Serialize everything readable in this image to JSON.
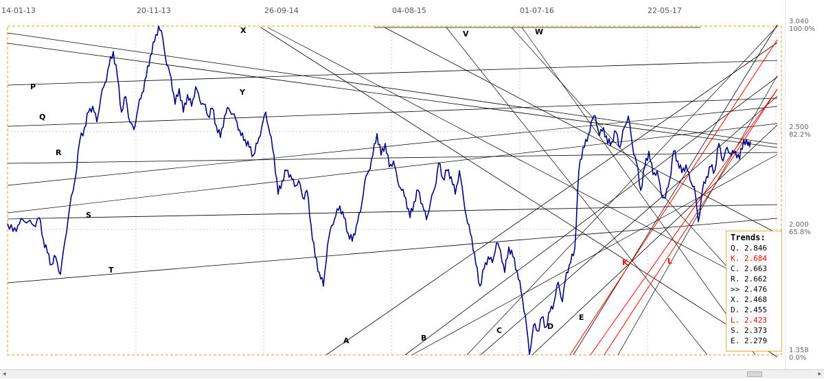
{
  "chart_data": {
    "type": "line",
    "x_dates": [
      "14-01-13",
      "20-11-13",
      "26-09-14",
      "04-08-15",
      "01-07-16",
      "22-05-17"
    ],
    "y_levels": [
      {
        "value": "3.040",
        "pct": "100.0%"
      },
      {
        "value": "2.500",
        "pct": "82.2%"
      },
      {
        "value": "2.000",
        "pct": "65.8%"
      },
      {
        "value": "1.358",
        "pct": "0.0%"
      }
    ],
    "ylim": [
      1.358,
      3.04
    ],
    "grid": "vertical dotted at date labels, horizontal dotted at y levels",
    "series": [
      {
        "color": "#000080",
        "points": [
          [
            0,
            2.03
          ],
          [
            8,
            1.99
          ],
          [
            15,
            2.02
          ],
          [
            22,
            2.05
          ],
          [
            30,
            2.04
          ],
          [
            38,
            2.02
          ],
          [
            46,
            2.06
          ],
          [
            52,
            1.95
          ],
          [
            58,
            1.88
          ],
          [
            64,
            1.82
          ],
          [
            70,
            1.86
          ],
          [
            77,
            1.77
          ],
          [
            84,
            1.95
          ],
          [
            90,
            2.1
          ],
          [
            98,
            2.25
          ],
          [
            105,
            2.45
          ],
          [
            112,
            2.52
          ],
          [
            118,
            2.6
          ],
          [
            124,
            2.63
          ],
          [
            130,
            2.55
          ],
          [
            136,
            2.68
          ],
          [
            142,
            2.75
          ],
          [
            148,
            2.84
          ],
          [
            154,
            2.91
          ],
          [
            160,
            2.78
          ],
          [
            166,
            2.6
          ],
          [
            172,
            2.68
          ],
          [
            178,
            2.55
          ],
          [
            184,
            2.51
          ],
          [
            190,
            2.62
          ],
          [
            196,
            2.7
          ],
          [
            202,
            2.78
          ],
          [
            208,
            2.89
          ],
          [
            214,
            2.96
          ],
          [
            220,
            3.04
          ],
          [
            226,
            2.98
          ],
          [
            232,
            2.84
          ],
          [
            238,
            2.78
          ],
          [
            244,
            2.64
          ],
          [
            250,
            2.72
          ],
          [
            256,
            2.6
          ],
          [
            262,
            2.69
          ],
          [
            268,
            2.63
          ],
          [
            274,
            2.73
          ],
          [
            280,
            2.66
          ],
          [
            286,
            2.64
          ],
          [
            292,
            2.58
          ],
          [
            298,
            2.62
          ],
          [
            304,
            2.53
          ],
          [
            310,
            2.47
          ],
          [
            316,
            2.58
          ],
          [
            322,
            2.62
          ],
          [
            328,
            2.59
          ],
          [
            334,
            2.55
          ],
          [
            340,
            2.48
          ],
          [
            346,
            2.46
          ],
          [
            352,
            2.42
          ],
          [
            358,
            2.38
          ],
          [
            364,
            2.44
          ],
          [
            370,
            2.52
          ],
          [
            376,
            2.6
          ],
          [
            382,
            2.49
          ],
          [
            388,
            2.38
          ],
          [
            394,
            2.18
          ],
          [
            400,
            2.25
          ],
          [
            406,
            2.3
          ],
          [
            412,
            2.28
          ],
          [
            418,
            2.22
          ],
          [
            424,
            2.25
          ],
          [
            430,
            2.16
          ],
          [
            436,
            2.2
          ],
          [
            442,
            2.02
          ],
          [
            448,
            1.86
          ],
          [
            454,
            1.78
          ],
          [
            460,
            1.71
          ],
          [
            466,
            1.92
          ],
          [
            472,
            2.02
          ],
          [
            478,
            2.07
          ],
          [
            484,
            2.12
          ],
          [
            490,
            2.06
          ],
          [
            496,
            1.98
          ],
          [
            502,
            1.94
          ],
          [
            508,
            2.02
          ],
          [
            514,
            2.09
          ],
          [
            520,
            2.24
          ],
          [
            526,
            2.3
          ],
          [
            532,
            2.38
          ],
          [
            538,
            2.49
          ],
          [
            544,
            2.38
          ],
          [
            550,
            2.44
          ],
          [
            556,
            2.32
          ],
          [
            562,
            2.35
          ],
          [
            568,
            2.25
          ],
          [
            574,
            2.2
          ],
          [
            580,
            2.16
          ],
          [
            586,
            2.06
          ],
          [
            592,
            2.14
          ],
          [
            598,
            2.2
          ],
          [
            604,
            2.13
          ],
          [
            610,
            2.05
          ],
          [
            616,
            2.14
          ],
          [
            622,
            2.21
          ],
          [
            628,
            2.34
          ],
          [
            634,
            2.26
          ],
          [
            640,
            2.3
          ],
          [
            646,
            2.27
          ],
          [
            652,
            2.18
          ],
          [
            658,
            2.3
          ],
          [
            664,
            2.16
          ],
          [
            670,
            2.03
          ],
          [
            676,
            1.96
          ],
          [
            682,
            1.82
          ],
          [
            688,
            1.71
          ],
          [
            694,
            1.8
          ],
          [
            700,
            1.86
          ],
          [
            706,
            1.83
          ],
          [
            712,
            1.93
          ],
          [
            718,
            1.89
          ],
          [
            724,
            1.78
          ],
          [
            730,
            1.91
          ],
          [
            736,
            1.86
          ],
          [
            742,
            1.79
          ],
          [
            748,
            1.68
          ],
          [
            754,
            1.56
          ],
          [
            760,
            1.36
          ],
          [
            766,
            1.51
          ],
          [
            772,
            1.48
          ],
          [
            778,
            1.55
          ],
          [
            784,
            1.5
          ],
          [
            790,
            1.58
          ],
          [
            796,
            1.63
          ],
          [
            802,
            1.73
          ],
          [
            808,
            1.63
          ],
          [
            814,
            1.78
          ],
          [
            820,
            1.83
          ],
          [
            826,
            1.9
          ],
          [
            832,
            2.3
          ],
          [
            838,
            2.42
          ],
          [
            844,
            2.45
          ],
          [
            850,
            2.55
          ],
          [
            856,
            2.58
          ],
          [
            862,
            2.48
          ],
          [
            868,
            2.52
          ],
          [
            874,
            2.44
          ],
          [
            880,
            2.45
          ],
          [
            886,
            2.5
          ],
          [
            892,
            2.42
          ],
          [
            898,
            2.52
          ],
          [
            904,
            2.58
          ],
          [
            910,
            2.43
          ],
          [
            916,
            2.34
          ],
          [
            922,
            2.2
          ],
          [
            928,
            2.32
          ],
          [
            934,
            2.4
          ],
          [
            940,
            2.28
          ],
          [
            946,
            2.3
          ],
          [
            952,
            2.18
          ],
          [
            958,
            2.16
          ],
          [
            964,
            2.25
          ],
          [
            970,
            2.4
          ],
          [
            976,
            2.35
          ],
          [
            982,
            2.29
          ],
          [
            988,
            2.33
          ],
          [
            994,
            2.25
          ],
          [
            1000,
            2.22
          ],
          [
            1006,
            2.04
          ],
          [
            1012,
            2.2
          ],
          [
            1018,
            2.27
          ],
          [
            1024,
            2.32
          ],
          [
            1030,
            2.3
          ],
          [
            1036,
            2.44
          ],
          [
            1042,
            2.35
          ],
          [
            1048,
            2.42
          ],
          [
            1054,
            2.38
          ],
          [
            1060,
            2.4
          ],
          [
            1066,
            2.36
          ],
          [
            1072,
            2.46
          ],
          [
            1078,
            2.43
          ],
          [
            1082,
            2.45
          ]
        ]
      }
    ],
    "trend_lines": [
      {
        "name": "P",
        "color": "#000000"
      },
      {
        "name": "Q",
        "color": "#000000"
      },
      {
        "name": "R",
        "color": "#000000"
      },
      {
        "name": "S",
        "color": "#000000"
      },
      {
        "name": "T",
        "color": "#000000"
      },
      {
        "name": "X",
        "color": "#000000"
      },
      {
        "name": "Y",
        "color": "#000000"
      },
      {
        "name": "V",
        "color": "#000000"
      },
      {
        "name": "W",
        "color": "#000000"
      },
      {
        "name": "A",
        "color": "#000000"
      },
      {
        "name": "B",
        "color": "#000000"
      },
      {
        "name": "C",
        "color": "#000000"
      },
      {
        "name": "D",
        "color": "#000000"
      },
      {
        "name": "E",
        "color": "#000000"
      },
      {
        "name": "K",
        "color": "#ff0000"
      },
      {
        "name": "L",
        "color": "#ff0000"
      }
    ],
    "trends_title": "Trends:",
    "trends": [
      {
        "label": "Q.",
        "value": "2.846",
        "color": "#000000"
      },
      {
        "label": "K.",
        "value": "2.684",
        "color": "#ff0000"
      },
      {
        "label": "C.",
        "value": "2.663",
        "color": "#000000"
      },
      {
        "label": "R.",
        "value": "2.662",
        "color": "#000000"
      },
      {
        "label": ">>",
        "value": "2.476",
        "color": "#000000"
      },
      {
        "label": "X.",
        "value": "2.468",
        "color": "#000000"
      },
      {
        "label": "D.",
        "value": "2.455",
        "color": "#000000"
      },
      {
        "label": "L.",
        "value": "2.423",
        "color": "#ff0000"
      },
      {
        "label": "S.",
        "value": "2.373",
        "color": "#000000"
      },
      {
        "label": "E.",
        "value": "2.279",
        "color": "#000000"
      }
    ]
  },
  "colors": {
    "price_line": "#000080",
    "frame_border": "#e0a020",
    "grid": "#c8c8c8",
    "red_channel": "#ff0000"
  },
  "scrollbar": {
    "left_arrow": "◂",
    "right_arrow": "▸"
  }
}
